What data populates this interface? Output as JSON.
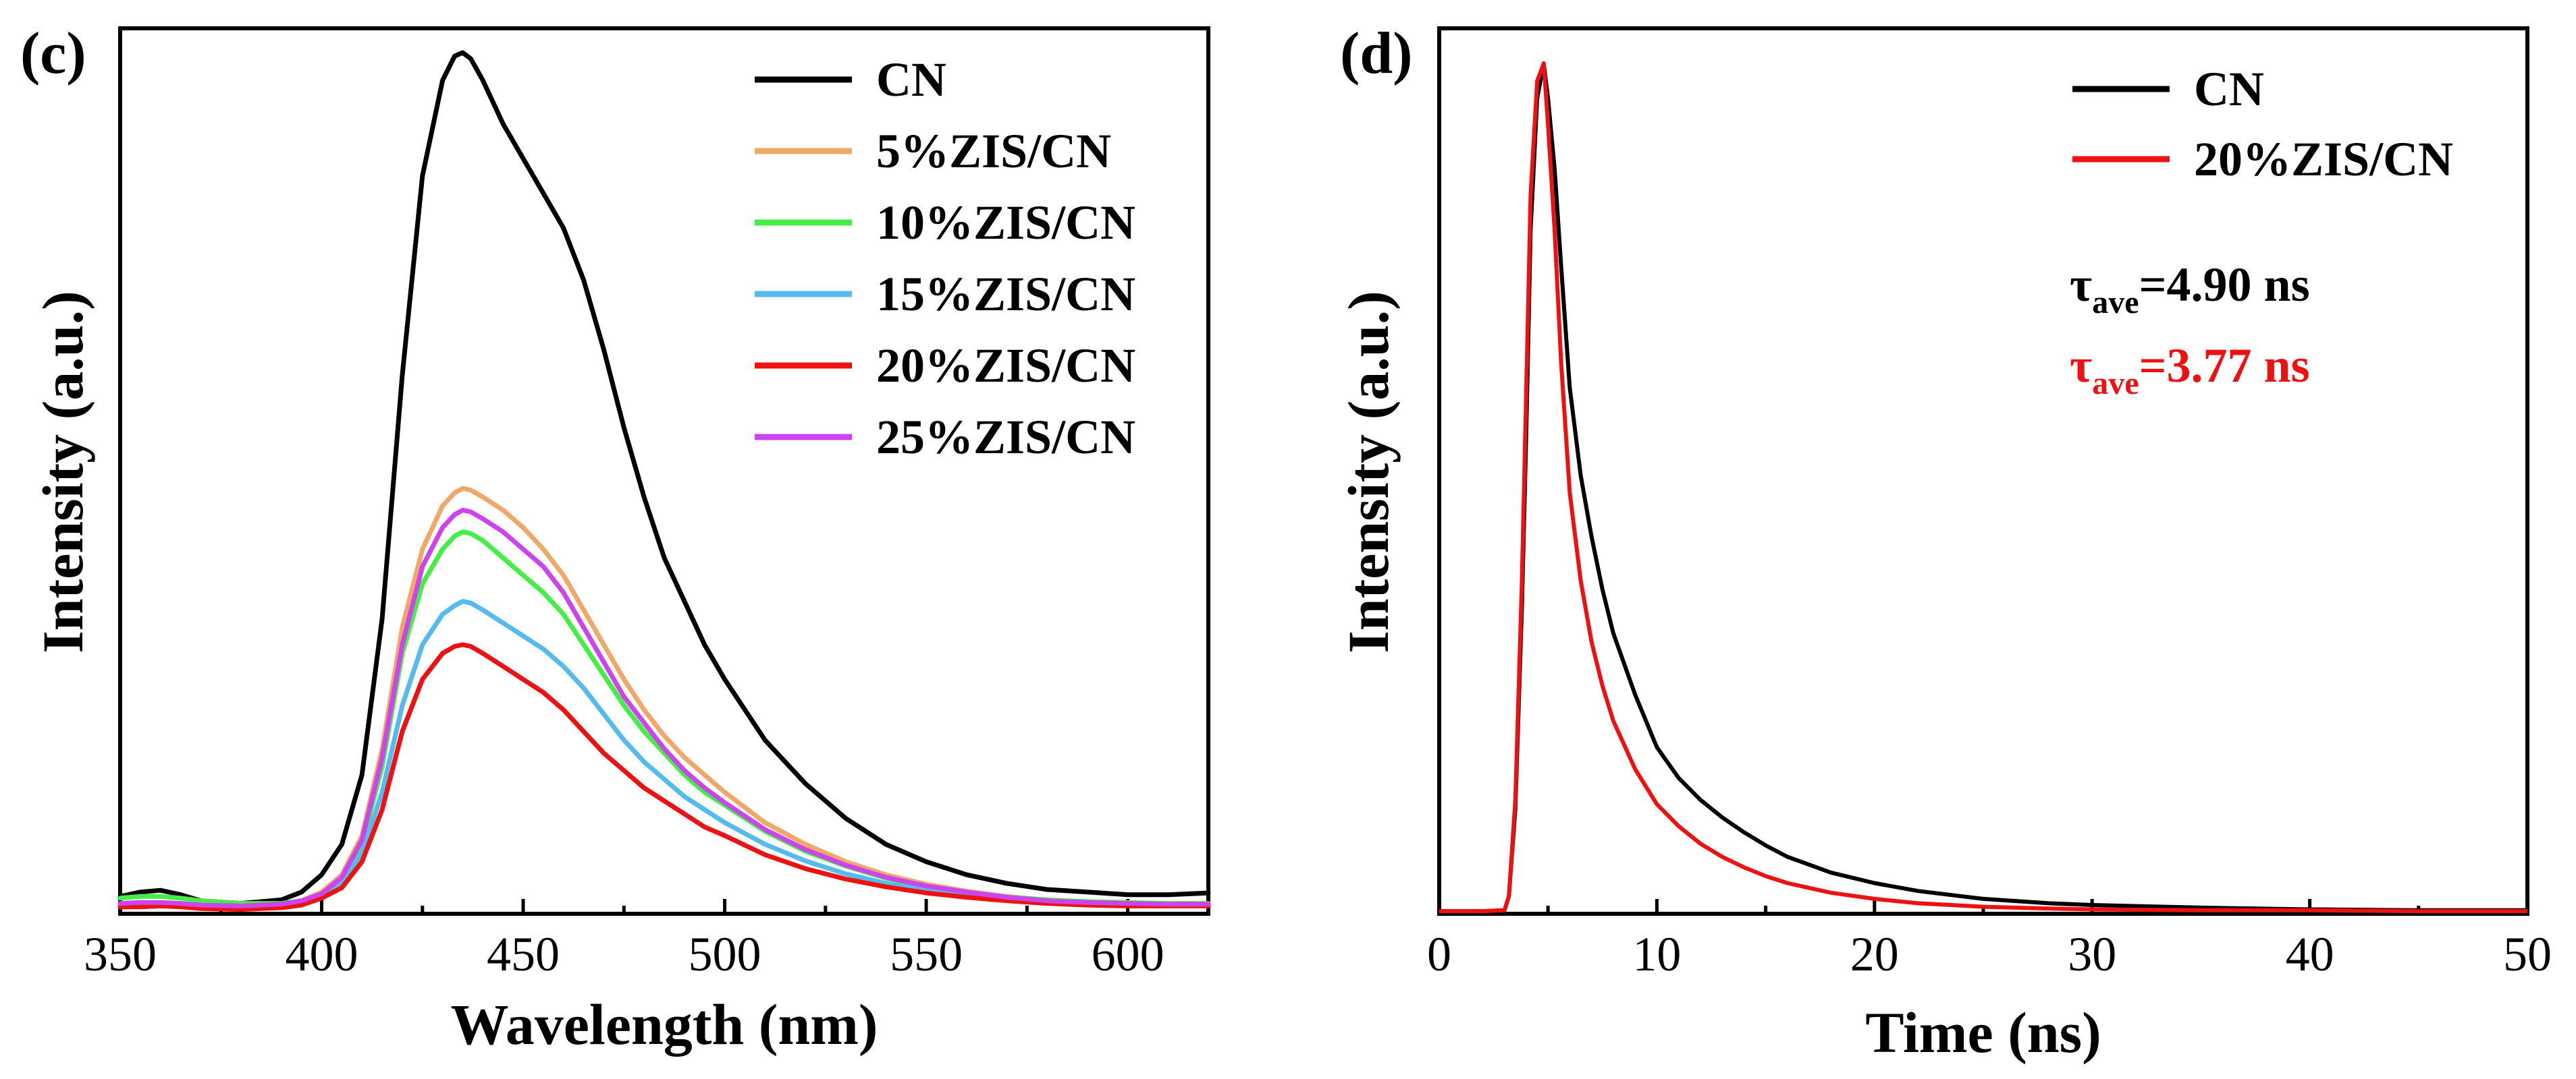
{
  "chart_data": [
    {
      "type": "line",
      "panel_label": "(c)",
      "title": "",
      "xlabel": "Wavelength (nm)",
      "ylabel": "Intensity (a.u.)",
      "xlim": [
        350,
        620
      ],
      "ylim": [
        0,
        1.02
      ],
      "xticks": [
        350,
        400,
        450,
        500,
        550,
        600
      ],
      "yticks_visible": false,
      "legend_position": "top-right",
      "series": [
        {
          "name": "CN",
          "color": "#000000",
          "x": [
            350,
            355,
            360,
            365,
            370,
            380,
            390,
            395,
            400,
            405,
            410,
            415,
            420,
            425,
            430,
            433,
            435,
            437,
            440,
            445,
            450,
            455,
            460,
            465,
            470,
            475,
            480,
            485,
            490,
            495,
            500,
            510,
            520,
            530,
            540,
            550,
            560,
            570,
            580,
            590,
            600,
            610,
            620
          ],
          "y": [
            0.02,
            0.025,
            0.027,
            0.022,
            0.015,
            0.012,
            0.016,
            0.025,
            0.045,
            0.08,
            0.16,
            0.34,
            0.62,
            0.85,
            0.96,
            0.988,
            0.992,
            0.985,
            0.96,
            0.91,
            0.87,
            0.83,
            0.79,
            0.73,
            0.65,
            0.56,
            0.48,
            0.41,
            0.36,
            0.31,
            0.27,
            0.2,
            0.15,
            0.11,
            0.08,
            0.06,
            0.045,
            0.035,
            0.028,
            0.025,
            0.022,
            0.022,
            0.024
          ]
        },
        {
          "name": "5%ZIS/CN",
          "color": "#F0A868",
          "x": [
            350,
            355,
            360,
            365,
            370,
            380,
            390,
            395,
            400,
            405,
            410,
            415,
            420,
            425,
            430,
            433,
            435,
            437,
            440,
            445,
            450,
            455,
            460,
            465,
            470,
            475,
            480,
            485,
            490,
            495,
            500,
            510,
            520,
            530,
            540,
            550,
            560,
            570,
            580,
            590,
            600,
            610,
            620
          ],
          "y": [
            0.01,
            0.012,
            0.013,
            0.011,
            0.009,
            0.008,
            0.01,
            0.015,
            0.025,
            0.045,
            0.09,
            0.19,
            0.33,
            0.42,
            0.47,
            0.485,
            0.49,
            0.488,
            0.48,
            0.465,
            0.445,
            0.42,
            0.39,
            0.35,
            0.31,
            0.27,
            0.235,
            0.205,
            0.18,
            0.16,
            0.14,
            0.105,
            0.08,
            0.06,
            0.045,
            0.034,
            0.026,
            0.02,
            0.016,
            0.013,
            0.012,
            0.011,
            0.011
          ]
        },
        {
          "name": "10%ZIS/CN",
          "color": "#44EE44",
          "x": [
            350,
            355,
            360,
            365,
            370,
            380,
            390,
            395,
            400,
            405,
            410,
            415,
            420,
            425,
            430,
            433,
            435,
            437,
            440,
            445,
            450,
            455,
            460,
            465,
            470,
            475,
            480,
            485,
            490,
            495,
            500,
            510,
            520,
            530,
            540,
            550,
            560,
            570,
            580,
            590,
            600,
            610,
            620
          ],
          "y": [
            0.018,
            0.02,
            0.02,
            0.018,
            0.015,
            0.012,
            0.012,
            0.015,
            0.022,
            0.04,
            0.08,
            0.17,
            0.3,
            0.38,
            0.42,
            0.435,
            0.44,
            0.438,
            0.43,
            0.41,
            0.39,
            0.37,
            0.345,
            0.31,
            0.275,
            0.24,
            0.21,
            0.185,
            0.16,
            0.14,
            0.125,
            0.095,
            0.072,
            0.055,
            0.041,
            0.031,
            0.024,
            0.019,
            0.016,
            0.014,
            0.013,
            0.012,
            0.012
          ]
        },
        {
          "name": "15%ZIS/CN",
          "color": "#55BBEE",
          "x": [
            350,
            355,
            360,
            365,
            370,
            380,
            390,
            395,
            400,
            405,
            410,
            415,
            420,
            425,
            430,
            433,
            435,
            437,
            440,
            445,
            450,
            455,
            460,
            465,
            470,
            475,
            480,
            485,
            490,
            495,
            500,
            510,
            520,
            530,
            540,
            550,
            560,
            570,
            580,
            590,
            600,
            610,
            620
          ],
          "y": [
            0.008,
            0.009,
            0.01,
            0.009,
            0.007,
            0.006,
            0.008,
            0.012,
            0.02,
            0.035,
            0.07,
            0.14,
            0.24,
            0.31,
            0.345,
            0.355,
            0.36,
            0.358,
            0.35,
            0.335,
            0.32,
            0.305,
            0.285,
            0.26,
            0.23,
            0.2,
            0.175,
            0.155,
            0.135,
            0.12,
            0.105,
            0.08,
            0.061,
            0.046,
            0.035,
            0.027,
            0.021,
            0.016,
            0.013,
            0.011,
            0.01,
            0.01,
            0.01
          ]
        },
        {
          "name": "20%ZIS/CN",
          "color": "#EE1111",
          "x": [
            350,
            355,
            360,
            365,
            370,
            380,
            390,
            395,
            400,
            405,
            410,
            415,
            420,
            425,
            430,
            433,
            435,
            437,
            440,
            445,
            450,
            455,
            460,
            465,
            470,
            475,
            480,
            485,
            490,
            495,
            500,
            510,
            520,
            530,
            540,
            550,
            560,
            570,
            580,
            590,
            600,
            610,
            620
          ],
          "y": [
            0.008,
            0.008,
            0.009,
            0.008,
            0.006,
            0.005,
            0.007,
            0.01,
            0.018,
            0.03,
            0.06,
            0.12,
            0.21,
            0.27,
            0.3,
            0.308,
            0.31,
            0.308,
            0.3,
            0.285,
            0.27,
            0.255,
            0.235,
            0.21,
            0.185,
            0.165,
            0.145,
            0.13,
            0.115,
            0.1,
            0.09,
            0.068,
            0.052,
            0.04,
            0.031,
            0.024,
            0.019,
            0.015,
            0.012,
            0.01,
            0.009,
            0.009,
            0.009
          ]
        },
        {
          "name": "25%ZIS/CN",
          "color": "#CC44EE",
          "x": [
            350,
            355,
            360,
            365,
            370,
            380,
            390,
            395,
            400,
            405,
            410,
            415,
            420,
            425,
            430,
            433,
            435,
            437,
            440,
            445,
            450,
            455,
            460,
            465,
            470,
            475,
            480,
            485,
            490,
            495,
            500,
            510,
            520,
            530,
            540,
            550,
            560,
            570,
            580,
            590,
            600,
            610,
            620
          ],
          "y": [
            0.012,
            0.013,
            0.013,
            0.012,
            0.01,
            0.009,
            0.011,
            0.015,
            0.023,
            0.042,
            0.085,
            0.18,
            0.31,
            0.4,
            0.445,
            0.46,
            0.465,
            0.463,
            0.455,
            0.44,
            0.42,
            0.4,
            0.37,
            0.33,
            0.29,
            0.25,
            0.22,
            0.19,
            0.165,
            0.145,
            0.128,
            0.097,
            0.074,
            0.056,
            0.042,
            0.032,
            0.025,
            0.019,
            0.015,
            0.013,
            0.012,
            0.011,
            0.011
          ]
        }
      ]
    },
    {
      "type": "line",
      "panel_label": "(d)",
      "title": "",
      "xlabel": "Time (ns)",
      "ylabel": "Intensity (a.u.)",
      "xlim": [
        0,
        50
      ],
      "ylim": [
        0,
        1.01
      ],
      "xticks": [
        0,
        10,
        20,
        30,
        40,
        50
      ],
      "yticks_visible": false,
      "legend_position": "top-right",
      "annotations": [
        {
          "symbol": "τ",
          "subscript": "ave",
          "text": "=4.90 ns",
          "color": "#000000"
        },
        {
          "symbol": "τ",
          "subscript": "ave",
          "text": "=3.77 ns",
          "color": "#EE1111"
        }
      ],
      "series": [
        {
          "name": "CN",
          "color": "#000000",
          "x": [
            0,
            1,
            2,
            3,
            3.2,
            3.5,
            3.8,
            4.0,
            4.2,
            4.5,
            4.8,
            5.0,
            5.3,
            5.6,
            6.0,
            6.5,
            7.0,
            7.5,
            8.0,
            9.0,
            10.0,
            11.0,
            12.0,
            13.0,
            14.0,
            15.0,
            16.0,
            18.0,
            20.0,
            22.0,
            25.0,
            28.0,
            30.0,
            35.0,
            40.0,
            45.0,
            50.0
          ],
          "y": [
            0.003,
            0.003,
            0.003,
            0.004,
            0.02,
            0.12,
            0.35,
            0.55,
            0.78,
            0.93,
            0.97,
            0.93,
            0.85,
            0.74,
            0.6,
            0.5,
            0.43,
            0.37,
            0.32,
            0.25,
            0.19,
            0.155,
            0.13,
            0.11,
            0.093,
            0.078,
            0.065,
            0.047,
            0.035,
            0.026,
            0.017,
            0.012,
            0.01,
            0.007,
            0.005,
            0.004,
            0.004
          ]
        },
        {
          "name": "20%ZIS/CN",
          "color": "#EE1111",
          "x": [
            0,
            1,
            2,
            3,
            3.2,
            3.5,
            3.8,
            4.0,
            4.2,
            4.5,
            4.8,
            5.0,
            5.3,
            5.6,
            6.0,
            6.5,
            7.0,
            7.5,
            8.0,
            9.0,
            10.0,
            11.0,
            12.0,
            13.0,
            14.0,
            15.0,
            16.0,
            18.0,
            20.0,
            22.0,
            25.0,
            28.0,
            30.0,
            35.0,
            40.0,
            45.0,
            50.0
          ],
          "y": [
            0.003,
            0.003,
            0.003,
            0.004,
            0.02,
            0.13,
            0.38,
            0.6,
            0.82,
            0.95,
            0.97,
            0.9,
            0.78,
            0.63,
            0.48,
            0.38,
            0.31,
            0.26,
            0.22,
            0.165,
            0.125,
            0.1,
            0.08,
            0.065,
            0.053,
            0.043,
            0.035,
            0.024,
            0.017,
            0.012,
            0.008,
            0.006,
            0.005,
            0.004,
            0.004,
            0.003,
            0.003
          ]
        }
      ]
    }
  ]
}
